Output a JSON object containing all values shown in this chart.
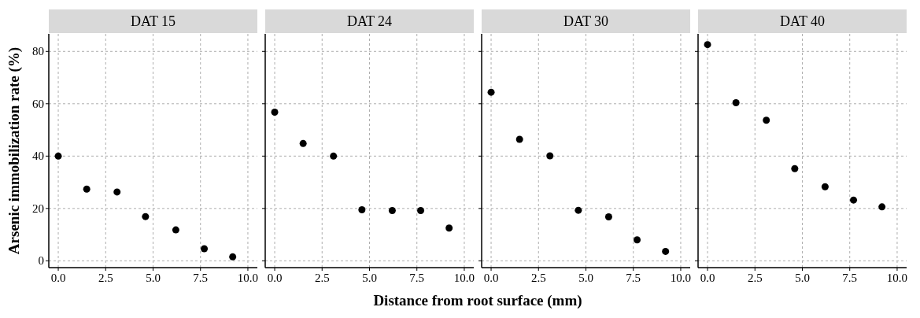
{
  "chart_data": [
    {
      "type": "scatter",
      "title": "DAT 15",
      "ylabel": "Arsenic immobilization rate (%)",
      "x": [
        0,
        1.5,
        3.1,
        4.6,
        6.2,
        7.7,
        9.2
      ],
      "series": [
        {
          "color": "#000000",
          "values": [
            40,
            27.4,
            26.3,
            16.9,
            11.8,
            4.6,
            1.5
          ]
        }
      ],
      "xlim": [
        -0.5,
        10.5
      ],
      "xticks": [
        {
          "value": 0,
          "label": "0.0"
        },
        {
          "value": 2.5,
          "label": "2.5"
        },
        {
          "value": 5,
          "label": "5.0"
        },
        {
          "value": 7.5,
          "label": "7.5"
        },
        {
          "value": 10,
          "label": "10.0"
        }
      ],
      "ylim": [
        -2.6,
        86.7
      ],
      "yticks": [
        0,
        20,
        40,
        60,
        80
      ],
      "grid": true,
      "marker": "circle"
    },
    {
      "type": "scatter",
      "title": "DAT 24",
      "xlabel": "Distance from root surface (mm)",
      "x": [
        0,
        1.5,
        3.1,
        4.6,
        6.2,
        7.7,
        9.2
      ],
      "series": [
        {
          "color": "#000000",
          "values": [
            56.8,
            44.8,
            40,
            19.5,
            19.2,
            19.2,
            12.5
          ]
        }
      ],
      "xlim": [
        -0.5,
        10.5
      ],
      "xticks": [
        {
          "value": 0,
          "label": "0.0"
        },
        {
          "value": 2.5,
          "label": "2.5"
        },
        {
          "value": 5,
          "label": "5.0"
        },
        {
          "value": 7.5,
          "label": "7.5"
        },
        {
          "value": 10,
          "label": "10.0"
        }
      ],
      "ylim": [
        -2.6,
        86.7
      ],
      "yticks": [
        0,
        20,
        40,
        60,
        80
      ],
      "tick_labels": "x",
      "grid": true,
      "marker": "circle"
    },
    {
      "type": "scatter",
      "title": "DAT 30",
      "x": [
        0,
        1.5,
        3.1,
        4.6,
        6.2,
        7.7,
        9.2
      ],
      "series": [
        {
          "color": "#000000",
          "values": [
            64.4,
            46.4,
            40.1,
            19.3,
            16.8,
            8,
            3.6
          ]
        }
      ],
      "xlim": [
        -0.5,
        10.5
      ],
      "xticks": [
        {
          "value": 0,
          "label": "0.0"
        },
        {
          "value": 2.5,
          "label": "2.5"
        },
        {
          "value": 5,
          "label": "5.0"
        },
        {
          "value": 7.5,
          "label": "7.5"
        },
        {
          "value": 10,
          "label": "10.0"
        }
      ],
      "ylim": [
        -2.6,
        86.7
      ],
      "yticks": [
        0,
        20,
        40,
        60,
        80
      ],
      "tick_labels": "x",
      "grid": true,
      "marker": "circle"
    },
    {
      "type": "scatter",
      "title": "DAT 40",
      "x": [
        0,
        1.5,
        3.1,
        4.6,
        6.2,
        7.7,
        9.2
      ],
      "series": [
        {
          "color": "#000000",
          "values": [
            82.6,
            60.4,
            53.7,
            35.2,
            28.3,
            23.2,
            20.6
          ]
        }
      ],
      "xlim": [
        -0.5,
        10.5
      ],
      "xticks": [
        {
          "value": 0,
          "label": "0.0"
        },
        {
          "value": 2.5,
          "label": "2.5"
        },
        {
          "value": 5,
          "label": "5.0"
        },
        {
          "value": 7.5,
          "label": "7.5"
        },
        {
          "value": 10,
          "label": "10.0"
        }
      ],
      "ylim": [
        -2.6,
        86.7
      ],
      "yticks": [
        0,
        20,
        40,
        60,
        80
      ],
      "tick_labels": "x",
      "grid": true,
      "marker": "circle"
    }
  ]
}
